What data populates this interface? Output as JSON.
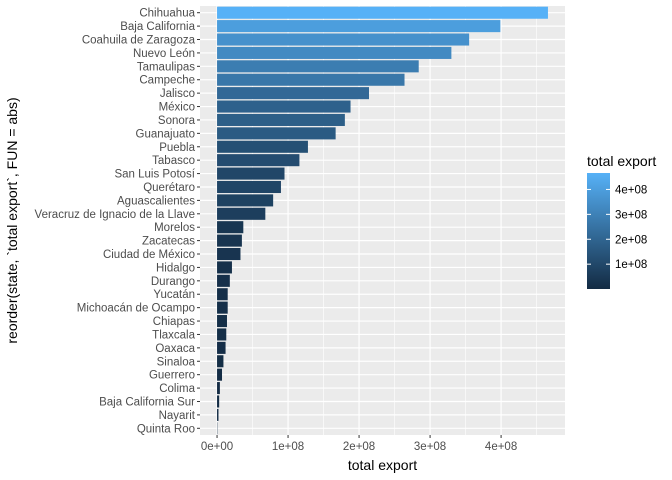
{
  "chart_data": {
    "type": "bar",
    "orientation": "horizontal",
    "categories": [
      "Chihuahua",
      "Baja California",
      "Coahuila de Zaragoza",
      "Nuevo León",
      "Tamaulipas",
      "Campeche",
      "Jalisco",
      "México",
      "Sonora",
      "Guanajuato",
      "Puebla",
      "Tabasco",
      "San Luis Potosí",
      "Querétaro",
      "Aguascalientes",
      "Veracruz de Ignacio de la Llave",
      "Morelos",
      "Zacatecas",
      "Ciudad de México",
      "Hidalgo",
      "Durango",
      "Yucatán",
      "Michoacán de Ocampo",
      "Chiapas",
      "Tlaxcala",
      "Oaxaca",
      "Sinaloa",
      "Guerrero",
      "Colima",
      "Baja California Sur",
      "Nayarit",
      "Quinta Roo"
    ],
    "values": [
      466000000,
      399000000,
      355000000,
      330000000,
      284000000,
      264000000,
      214000000,
      188000000,
      180000000,
      167000000,
      128000000,
      116000000,
      95000000,
      90000000,
      79000000,
      68000000,
      37000000,
      35000000,
      33000000,
      21000000,
      18000000,
      15000000,
      15000000,
      14000000,
      13000000,
      12000000,
      9000000,
      7000000,
      4000000,
      3000000,
      2000000,
      300000
    ],
    "xlabel": "total export",
    "ylabel": "reorder(state, `total export`, FUN = abs)",
    "xlim": [
      -24000000,
      490000000
    ],
    "x_ticks": [
      0,
      100000000,
      200000000,
      300000000,
      400000000
    ],
    "x_tick_labels": [
      "0e+00",
      "1e+08",
      "2e+08",
      "3e+08",
      "4e+08"
    ],
    "grid": true,
    "legend": {
      "title": "total export",
      "placement": "right",
      "range": [
        300000,
        466000000
      ],
      "ticks": [
        100000000,
        200000000,
        300000000,
        400000000
      ],
      "tick_labels": [
        "1e+08",
        "2e+08",
        "3e+08",
        "4e+08"
      ],
      "color_low": "#132B43",
      "color_high": "#56B1F7"
    },
    "panel_background": "#EBEBEB"
  }
}
